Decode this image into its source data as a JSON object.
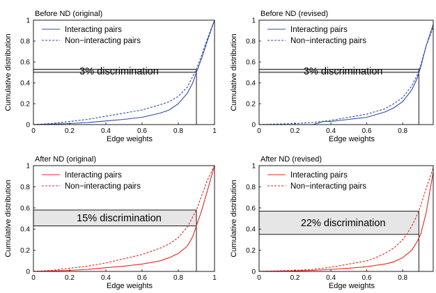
{
  "colors": {
    "blue": "#2b4aa3",
    "red": "#e8231b",
    "band": "#e6e6e6"
  },
  "chart_data": [
    {
      "type": "line",
      "title": "Before ND (original)",
      "xlabel": "Edge weights",
      "ylabel": "Cumulative distribution",
      "xlim": [
        0,
        1
      ],
      "ylim": [
        0,
        1
      ],
      "xticks": [
        "0",
        "0.2",
        "0.4",
        "0.6",
        "0.8",
        "1"
      ],
      "yticks": [
        "0",
        "0.2",
        "0.4",
        "0.6",
        "0.8",
        "1"
      ],
      "color": "blue",
      "legend": "top-left",
      "series": [
        {
          "name": "Interacting pairs",
          "dash": false,
          "x": [
            0,
            0.2,
            0.3,
            0.4,
            0.5,
            0.6,
            0.7,
            0.75,
            0.8,
            0.85,
            0.88,
            0.9,
            0.93,
            0.96,
            1.0
          ],
          "y": [
            0,
            0.01,
            0.02,
            0.035,
            0.05,
            0.07,
            0.11,
            0.14,
            0.2,
            0.3,
            0.4,
            0.5,
            0.64,
            0.8,
            1.0
          ]
        },
        {
          "name": "Non−interacting pairs",
          "dash": true,
          "x": [
            0,
            0.1,
            0.2,
            0.3,
            0.4,
            0.5,
            0.6,
            0.7,
            0.75,
            0.8,
            0.85,
            0.9,
            0.93,
            0.96,
            1.0
          ],
          "y": [
            0,
            0.01,
            0.03,
            0.05,
            0.08,
            0.11,
            0.14,
            0.19,
            0.22,
            0.27,
            0.36,
            0.53,
            0.67,
            0.82,
            1.0
          ]
        }
      ],
      "band": {
        "y_low": 0.5,
        "y_high": 0.53,
        "x": 0.9
      },
      "annotation": "3% discrimination"
    },
    {
      "type": "line",
      "title": "Before ND (revised)",
      "xlabel": "Edge weights",
      "ylabel": "Cumulative distribution",
      "xlim": [
        0,
        0.97
      ],
      "ylim": [
        0,
        1
      ],
      "xticks": [
        "0",
        "0.2",
        "0.4",
        "0.6",
        "0.8"
      ],
      "yticks": [
        "0",
        "0.2",
        "0.4",
        "0.6",
        "0.8",
        "1"
      ],
      "color": "blue",
      "legend": "top-left",
      "series": [
        {
          "name": "Interacting pairs",
          "dash": false,
          "x": [
            0,
            0.3,
            0.36,
            0.4,
            0.5,
            0.6,
            0.7,
            0.75,
            0.8,
            0.85,
            0.88,
            0.9,
            0.93,
            0.97
          ],
          "y": [
            0,
            0.0,
            0.03,
            0.03,
            0.05,
            0.07,
            0.12,
            0.16,
            0.22,
            0.33,
            0.44,
            0.55,
            0.75,
            0.96
          ]
        },
        {
          "name": "Non−interacting pairs",
          "dash": true,
          "x": [
            0,
            0.2,
            0.3,
            0.4,
            0.5,
            0.6,
            0.7,
            0.75,
            0.8,
            0.85,
            0.88,
            0.9,
            0.93,
            0.97
          ],
          "y": [
            0,
            0.01,
            0.02,
            0.04,
            0.07,
            0.1,
            0.15,
            0.2,
            0.26,
            0.37,
            0.47,
            0.57,
            0.75,
            0.93
          ]
        }
      ],
      "band": {
        "y_low": 0.5,
        "y_high": 0.53,
        "x": 0.89
      },
      "annotation": "3% discrimination"
    },
    {
      "type": "line",
      "title": "After ND (original)",
      "xlabel": "Edge weights",
      "ylabel": "Cumulative distribution",
      "xlim": [
        0,
        1
      ],
      "ylim": [
        0,
        1
      ],
      "xticks": [
        "0",
        "0.2",
        "0.4",
        "0.6",
        "0.8",
        "1"
      ],
      "yticks": [
        "0",
        "0.2",
        "0.4",
        "0.6",
        "0.8",
        "1"
      ],
      "color": "red",
      "legend": "top-left",
      "series": [
        {
          "name": "Interacting pairs",
          "dash": false,
          "x": [
            0,
            0.2,
            0.3,
            0.4,
            0.5,
            0.6,
            0.7,
            0.75,
            0.8,
            0.85,
            0.88,
            0.9,
            0.93,
            0.96,
            1.0
          ],
          "y": [
            0,
            0.01,
            0.02,
            0.035,
            0.05,
            0.07,
            0.1,
            0.13,
            0.17,
            0.24,
            0.33,
            0.43,
            0.58,
            0.76,
            1.0
          ]
        },
        {
          "name": "Non−interacting pairs",
          "dash": true,
          "x": [
            0,
            0.1,
            0.2,
            0.3,
            0.4,
            0.5,
            0.6,
            0.7,
            0.75,
            0.8,
            0.85,
            0.9,
            0.93,
            0.96,
            1.0
          ],
          "y": [
            0,
            0.01,
            0.03,
            0.05,
            0.08,
            0.12,
            0.16,
            0.22,
            0.26,
            0.32,
            0.42,
            0.58,
            0.72,
            0.86,
            1.0
          ]
        }
      ],
      "band": {
        "y_low": 0.43,
        "y_high": 0.58,
        "x": 0.9
      },
      "annotation": "15% discrimination"
    },
    {
      "type": "line",
      "title": "After ND (revised)",
      "xlabel": "Edge weights",
      "ylabel": "Cumulative distribution",
      "xlim": [
        0,
        0.97
      ],
      "ylim": [
        0,
        1
      ],
      "xticks": [
        "0",
        "0.2",
        "0.4",
        "0.6",
        "0.8"
      ],
      "yticks": [
        "0",
        "0.2",
        "0.4",
        "0.6",
        "0.8",
        "1"
      ],
      "color": "red",
      "legend": "top-left",
      "series": [
        {
          "name": "Interacting pairs",
          "dash": false,
          "x": [
            0,
            0.2,
            0.3,
            0.4,
            0.5,
            0.6,
            0.7,
            0.75,
            0.8,
            0.85,
            0.88,
            0.9,
            0.93,
            0.97
          ],
          "y": [
            0,
            0.005,
            0.01,
            0.02,
            0.03,
            0.045,
            0.07,
            0.09,
            0.13,
            0.2,
            0.28,
            0.35,
            0.55,
            0.94
          ]
        },
        {
          "name": "Non−interacting pairs",
          "dash": true,
          "x": [
            0,
            0.2,
            0.3,
            0.4,
            0.5,
            0.6,
            0.65,
            0.7,
            0.75,
            0.8,
            0.83,
            0.86,
            0.89,
            0.93,
            0.97
          ],
          "y": [
            0,
            0.01,
            0.02,
            0.04,
            0.07,
            0.1,
            0.13,
            0.17,
            0.22,
            0.3,
            0.37,
            0.46,
            0.57,
            0.78,
            0.98
          ]
        }
      ],
      "band": {
        "y_low": 0.35,
        "y_high": 0.57,
        "x": 0.89
      },
      "annotation": "22% discrimination"
    }
  ]
}
